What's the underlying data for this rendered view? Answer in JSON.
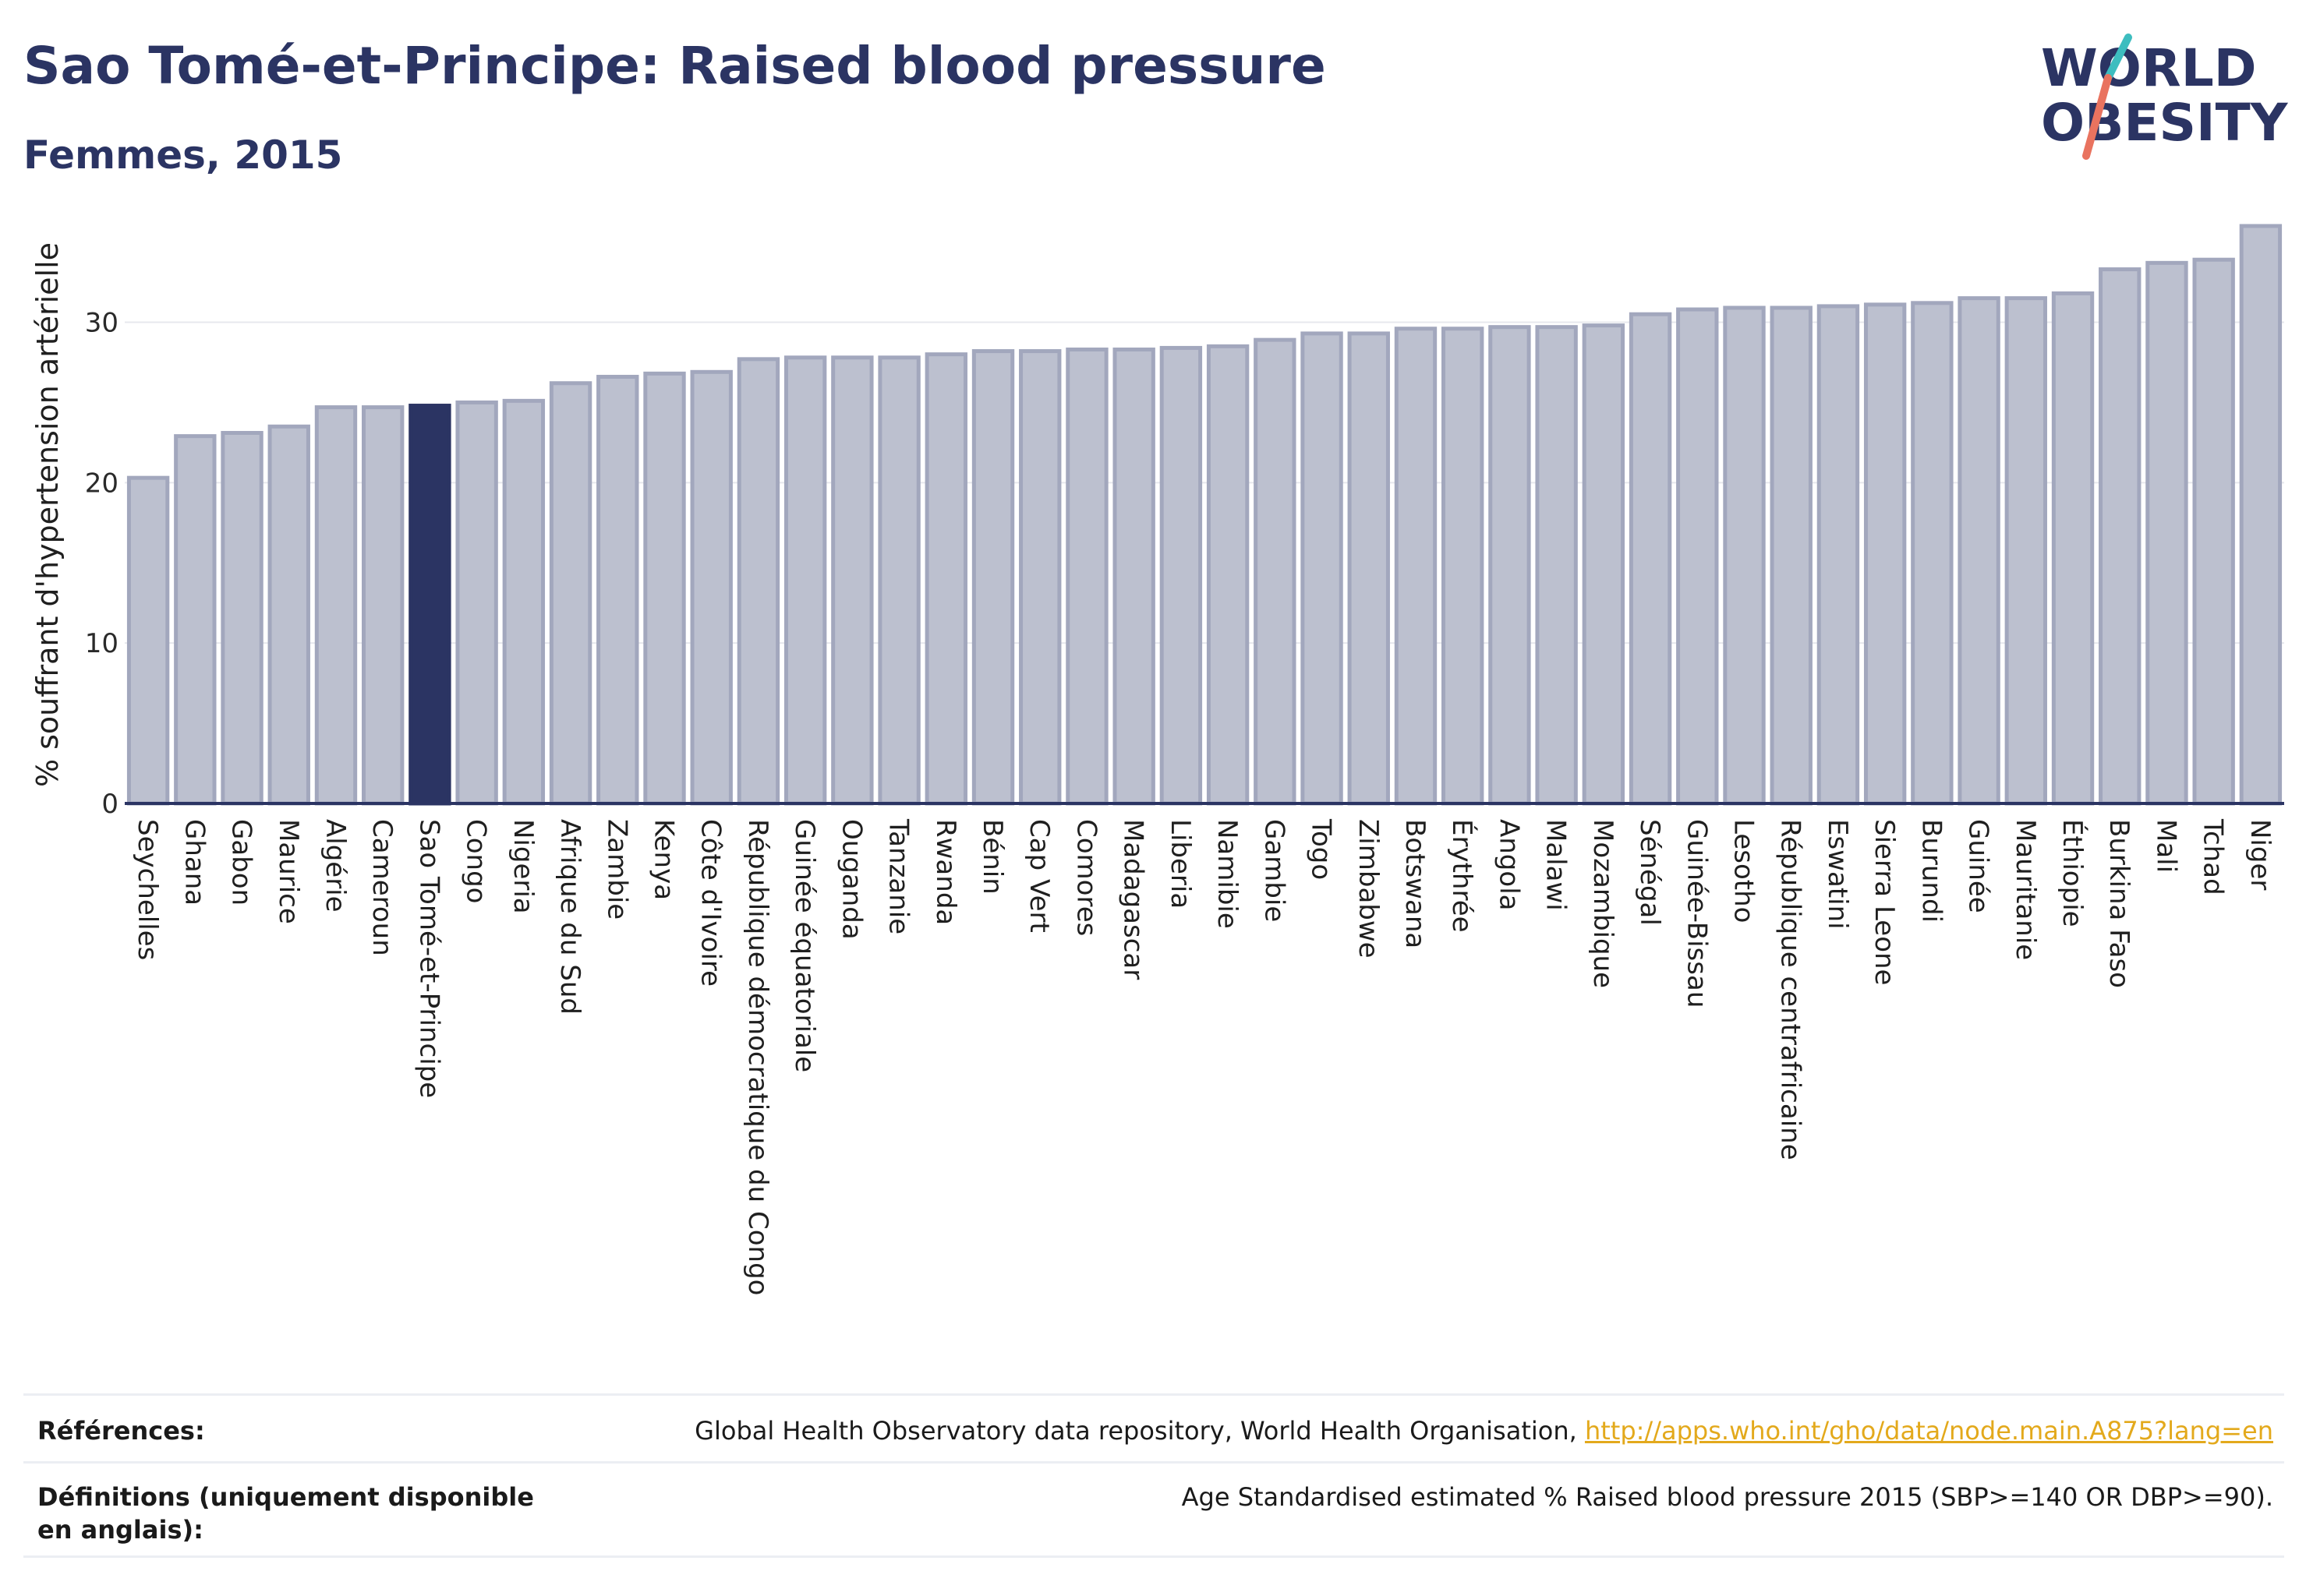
{
  "header": {
    "title": "Sao Tomé-et-Principe: Raised blood pressure",
    "subtitle": "Femmes, 2015",
    "logo_line1": "WORLD",
    "logo_line2": "OBESITY"
  },
  "colors": {
    "bar": "#bcc0cf",
    "bar_border": "#a2a7bd",
    "highlight": "#2b3463",
    "text": "#2b3463",
    "link": "#e3a91c",
    "logo_teal": "#3dbdbf",
    "logo_coral": "#e9735f"
  },
  "chart_data": {
    "type": "bar",
    "ylabel": "% souffrant d'hypertension artérielle",
    "ylim": [
      0,
      36
    ],
    "yticks": [
      0,
      10,
      20,
      30
    ],
    "grid": true,
    "highlight_category": "Sao Tomé-et-Principe",
    "categories": [
      "Seychelles",
      "Ghana",
      "Gabon",
      "Maurice",
      "Algérie",
      "Cameroun",
      "Sao Tomé-et-Principe",
      "Congo",
      "Nigeria",
      "Afrique du Sud",
      "Zambie",
      "Kenya",
      "Côte d'Ivoire",
      "République démocratique du Congo",
      "Guinée équatoriale",
      "Ouganda",
      "Tanzanie",
      "Rwanda",
      "Bénin",
      "Cap Vert",
      "Comores",
      "Madagascar",
      "Liberia",
      "Namibie",
      "Gambie",
      "Togo",
      "Zimbabwe",
      "Botswana",
      "Érythrée",
      "Angola",
      "Malawi",
      "Mozambique",
      "Sénégal",
      "Guinée-Bissau",
      "Lesotho",
      "République centrafricaine",
      "Eswatini",
      "Sierra Leone",
      "Burundi",
      "Guinée",
      "Mauritanie",
      "Éthiopie",
      "Burkina Faso",
      "Mali",
      "Tchad",
      "Niger"
    ],
    "values": [
      20.3,
      22.9,
      23.1,
      23.5,
      24.7,
      24.7,
      24.8,
      25.0,
      25.1,
      26.2,
      26.6,
      26.8,
      26.9,
      27.7,
      27.8,
      27.8,
      27.8,
      28.0,
      28.2,
      28.2,
      28.3,
      28.3,
      28.4,
      28.5,
      28.9,
      29.3,
      29.3,
      29.6,
      29.6,
      29.7,
      29.7,
      29.8,
      30.5,
      30.8,
      30.9,
      30.9,
      31.0,
      31.1,
      31.2,
      31.5,
      31.5,
      31.8,
      33.3,
      33.7,
      33.9,
      36.0
    ]
  },
  "references": {
    "ref_label": "Références:",
    "ref_text": "Global Health Observatory data repository, World Health Organisation, ",
    "ref_link": "http://apps.who.int/gho/data/node.main.A875?lang=en",
    "def_label": "Définitions (uniquement disponible en anglais):",
    "def_text": "Age Standardised estimated % Raised blood pressure 2015 (SBP>=140 OR DBP>=90)."
  }
}
